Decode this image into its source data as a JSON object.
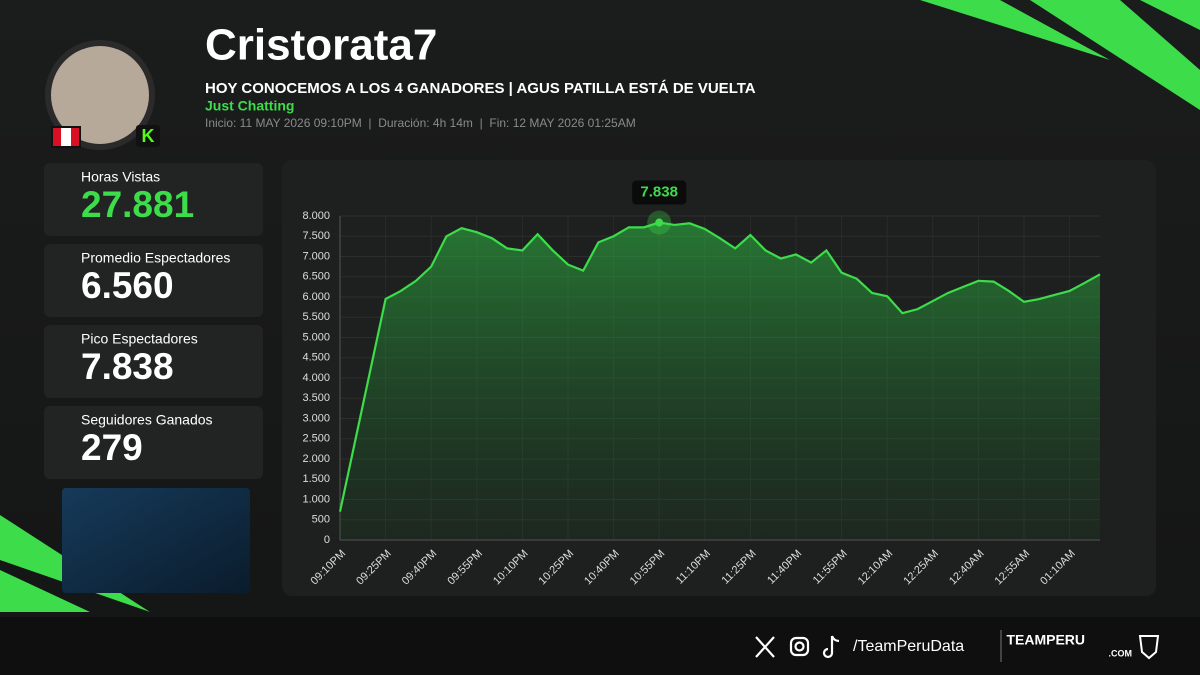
{
  "header": {
    "name": "Cristorata7",
    "title": "HOY CONOCEMOS A LOS 4 GANADORES | AGUS PATILLA ESTÁ DE VUELTA",
    "category": "Just Chatting",
    "info": "Inicio: 11 MAY 2026 09:10PM  |  Duración: 4h 14m  |  Fin: 12 MAY 2026 01:25AM"
  },
  "stats": [
    {
      "label": "Horas Vistas",
      "value": "27.881"
    },
    {
      "label": "Promedio Espectadores",
      "value": "6.560"
    },
    {
      "label": "Pico Espectadores",
      "value": "7.838"
    },
    {
      "label": "Seguidores Ganados",
      "value": "279"
    }
  ],
  "footer": {
    "handle": "/TeamPeruData",
    "brand": "TEAMPERU",
    "brand_sub": ".COM"
  },
  "chart_data": {
    "type": "line",
    "color": "#3ddc4a",
    "grid": true,
    "categories": [
      "09:10PM",
      null,
      null,
      "09:25PM",
      null,
      null,
      "09:40PM",
      null,
      null,
      "09:55PM",
      null,
      null,
      "10:10PM",
      null,
      null,
      "10:25PM",
      null,
      null,
      "10:40PM",
      null,
      null,
      "10:55PM",
      null,
      null,
      "11:10PM",
      null,
      null,
      "11:25PM",
      null,
      null,
      "11:40PM",
      null,
      null,
      "11:55PM",
      null,
      null,
      "12:10AM",
      null,
      null,
      "12:25AM",
      null,
      null,
      "12:40AM",
      null,
      null,
      "12:55AM",
      null,
      null,
      "01:10AM",
      null,
      null
    ],
    "values": [
      700,
      2450,
      4200,
      5950,
      6150,
      6400,
      6750,
      7500,
      7700,
      7600,
      7450,
      7200,
      7150,
      7550,
      7150,
      6800,
      6650,
      7350,
      7500,
      7720,
      7720,
      7838,
      7780,
      7820,
      7680,
      7450,
      7200,
      7530,
      7150,
      6950,
      7050,
      6850,
      7150,
      6600,
      6450,
      6100,
      6020,
      5600,
      5700,
      5900,
      6100,
      6250,
      6400,
      6380,
      6150,
      5880,
      5950,
      6050,
      6150,
      6350,
      6560
    ],
    "peak_label": {
      "value": 7838,
      "label": "7.838"
    },
    "ylim": [
      0,
      8000
    ],
    "yticks": [
      0,
      500,
      {
        "value": 1000,
        "label": "1.000"
      },
      {
        "value": 1500,
        "label": "1.500"
      },
      {
        "value": 2000,
        "label": "2.000"
      },
      {
        "value": 2500,
        "label": "2.500"
      },
      {
        "value": 3000,
        "label": "3.000"
      },
      {
        "value": 3500,
        "label": "3.500"
      },
      {
        "value": 4000,
        "label": "4.000"
      },
      {
        "value": 4500,
        "label": "4.500"
      },
      {
        "value": 5000,
        "label": "5.000"
      },
      {
        "value": 5500,
        "label": "5.500"
      },
      {
        "value": 6000,
        "label": "6.000"
      },
      {
        "value": 6500,
        "label": "6.500"
      },
      {
        "value": 7000,
        "label": "7.000"
      },
      {
        "value": 7500,
        "label": "7.500"
      },
      {
        "value": 8000,
        "label": "8.000"
      }
    ]
  }
}
